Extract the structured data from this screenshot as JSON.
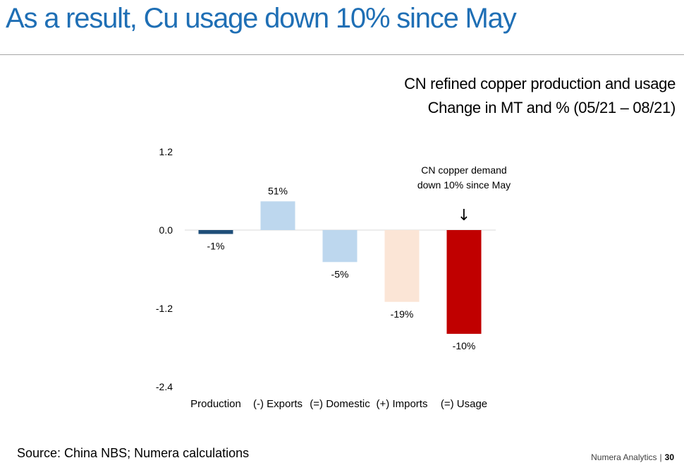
{
  "slide": {
    "title": "As a result, Cu usage down 10% since May",
    "subtitle_line1": "CN refined copper production and usage",
    "subtitle_line2": "Change in MT and % (05/21 – 08/21)",
    "source": "Source: China NBS; Numera calculations",
    "footer_brand": "Numera Analytics",
    "footer_separator": "|",
    "page_number": "30"
  },
  "chart_data": {
    "type": "bar",
    "title": "CN refined copper production and usage",
    "subtitle": "Change in MT and % (05/21 – 08/21)",
    "categories": [
      "Production",
      "(-) Exports",
      "(=) Domestic",
      "(+) Imports",
      "(=) Usage"
    ],
    "values": [
      -0.06,
      0.44,
      -0.49,
      -1.1,
      -1.59
    ],
    "data_labels": [
      "-1%",
      "51%",
      "-5%",
      "-19%",
      "-10%"
    ],
    "colors": [
      "#1f4e79",
      "#bdd7ee",
      "#bdd7ee",
      "#fbe5d6",
      "#c00000"
    ],
    "ylim": [
      -2.4,
      1.2
    ],
    "yticks": [
      1.2,
      0.0,
      -1.2,
      -2.4
    ],
    "ytick_labels": [
      "1.2",
      "0.0",
      "-1.2",
      "-2.4"
    ],
    "xlabel": "",
    "ylabel": "",
    "grid": false,
    "annotation": {
      "line1": "CN copper demand",
      "line2": "down 10% since May",
      "target_category_index": 4,
      "arrow": "↓"
    }
  }
}
